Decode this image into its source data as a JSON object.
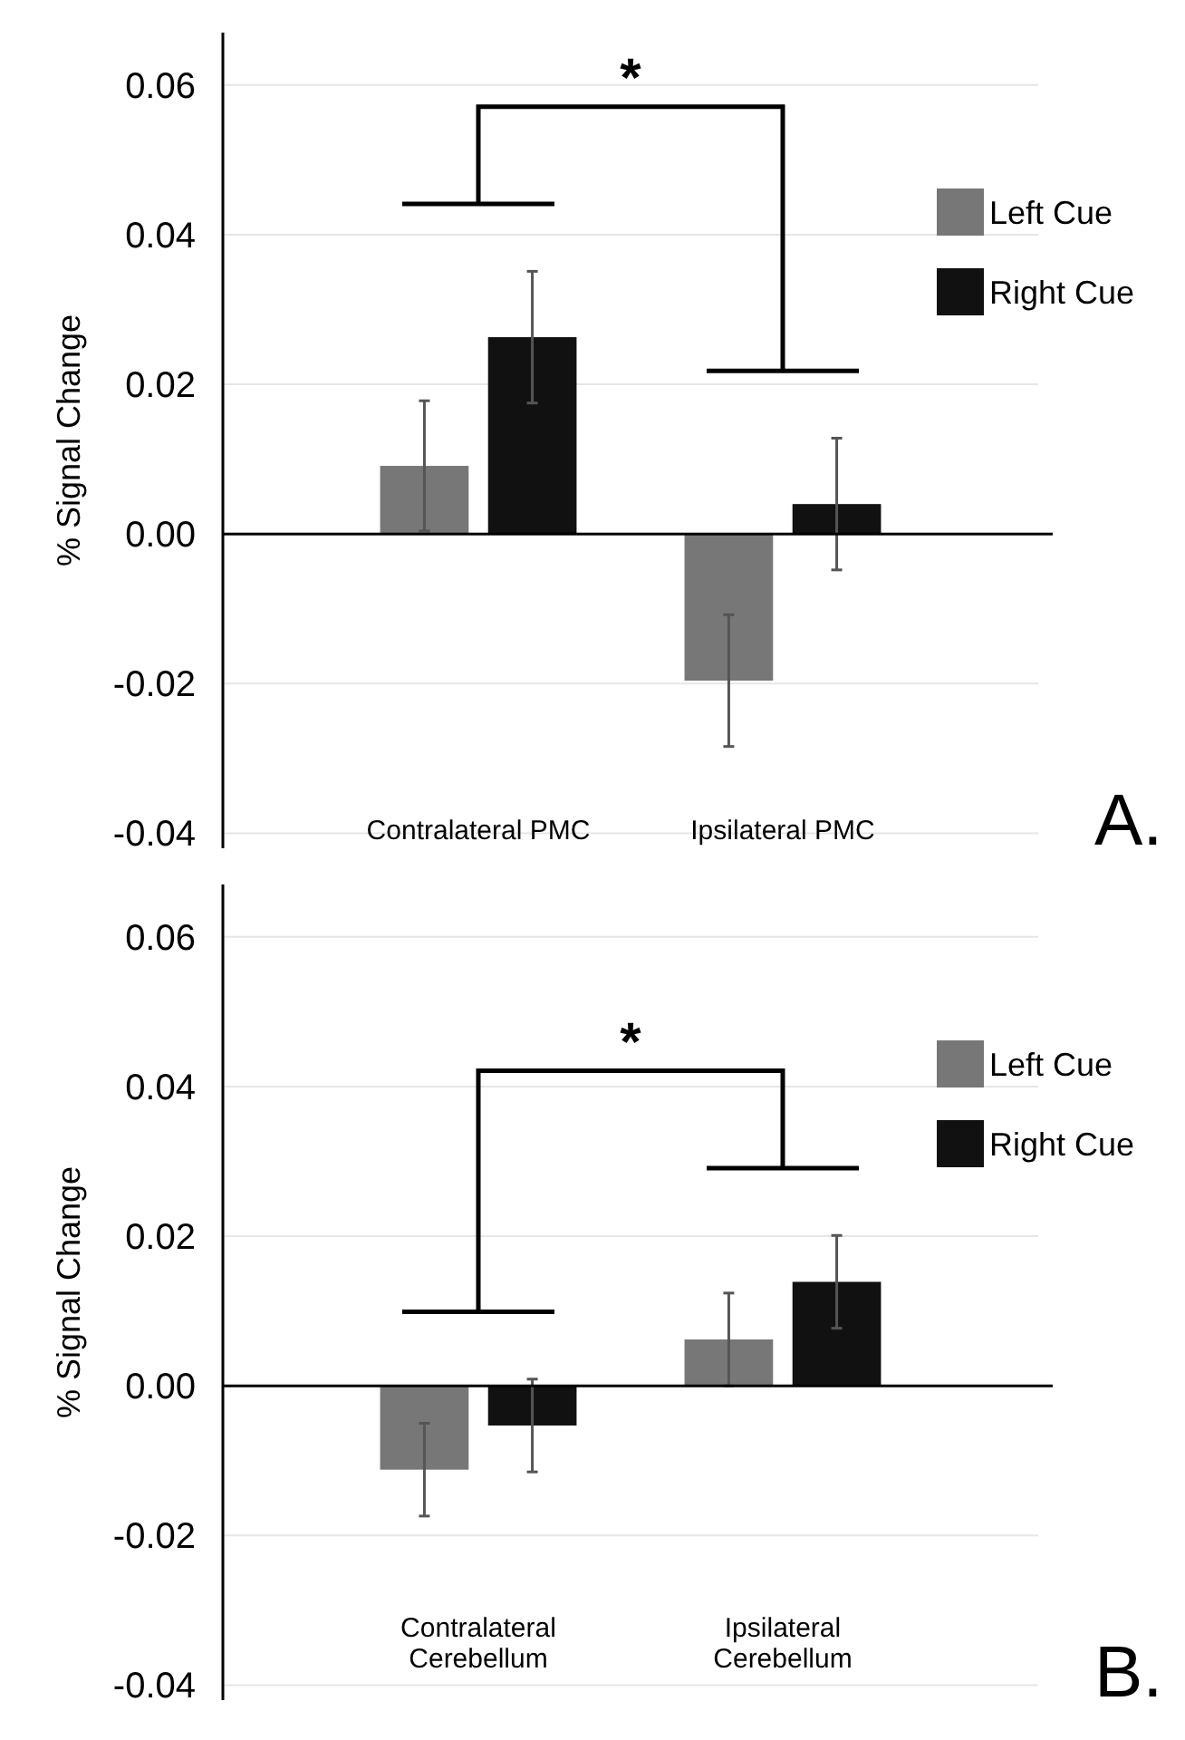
{
  "chart_data": [
    {
      "type": "bar",
      "ylabel": "% Signal Change",
      "categories": [
        "Contralateral PMC",
        "Ipsilateral PMC"
      ],
      "series": [
        {
          "name": "Left Cue",
          "color": "#777777",
          "values": [
            0.0091,
            -0.0196
          ],
          "errors": [
            0.0087,
            0.0088
          ]
        },
        {
          "name": "Right Cue",
          "color": "#111111",
          "values": [
            0.0263,
            0.004
          ],
          "errors": [
            0.0088,
            0.0088
          ]
        }
      ],
      "ylim": [
        -0.042,
        0.067
      ],
      "yticks": [
        0.06,
        0.04,
        0.02,
        {
          "value": 0,
          "label": "0.00"
        },
        -0.02,
        -0.04
      ],
      "grid": "y",
      "legend": "right",
      "annotations": [
        "*",
        "A."
      ]
    },
    {
      "type": "bar",
      "ylabel": "% Signal Change",
      "categories": [
        "Contralateral Cerebellum",
        "Ipsilateral Cerebellum"
      ],
      "series": [
        {
          "name": "Left Cue",
          "color": "#777777",
          "values": [
            -0.0112,
            0.0062
          ],
          "errors": [
            0.0062,
            0.0062
          ]
        },
        {
          "name": "Right Cue",
          "color": "#111111",
          "values": [
            -0.0053,
            0.0139
          ],
          "errors": [
            0.0062,
            0.0062
          ]
        }
      ],
      "ylim": [
        -0.042,
        0.067
      ],
      "yticks": [
        0.06,
        0.04,
        0.02,
        {
          "value": 0,
          "label": "0.00"
        },
        -0.02,
        -0.04
      ],
      "grid": "y",
      "legend": "right",
      "annotations": [
        "*",
        "B."
      ]
    }
  ]
}
